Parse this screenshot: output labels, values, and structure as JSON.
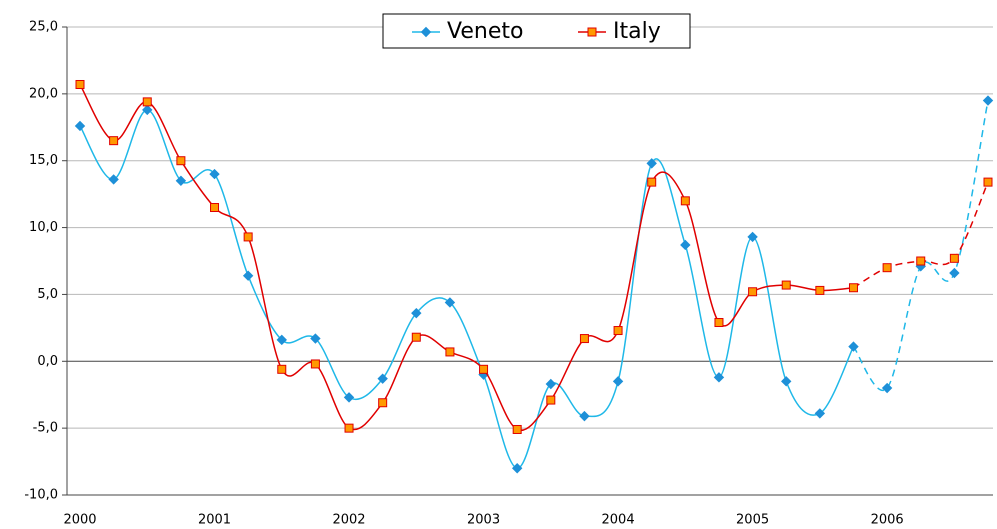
{
  "chart_data": {
    "type": "line",
    "categories": [
      "2000",
      null,
      null,
      null,
      "2001",
      null,
      null,
      null,
      "2002",
      null,
      null,
      null,
      "2003",
      null,
      null,
      null,
      "2004",
      null,
      null,
      null,
      "2005",
      null,
      null,
      null,
      "2006",
      null,
      null,
      null
    ],
    "series": [
      {
        "name": "Veneto",
        "color": "#1fb8e8",
        "marker_color": "#1e90d8",
        "marker": "diamond",
        "values": [
          17.6,
          13.6,
          18.8,
          13.5,
          14.0,
          6.4,
          1.6,
          1.7,
          -2.7,
          -1.3,
          3.6,
          4.4,
          -1.0,
          -8.0,
          -1.7,
          -4.1,
          -1.5,
          14.8,
          8.7,
          -1.2,
          9.3,
          -1.5,
          -3.9,
          1.1,
          -2.0,
          7.1,
          6.6,
          19.5
        ]
      },
      {
        "name": "Italy",
        "color": "#e00000",
        "marker_color": "#ff9900",
        "marker": "square",
        "values": [
          20.7,
          16.5,
          19.4,
          15.0,
          11.5,
          9.3,
          -0.6,
          -0.2,
          -5.0,
          -3.1,
          1.8,
          0.7,
          -0.6,
          -5.1,
          -2.9,
          1.7,
          2.3,
          13.4,
          12.0,
          2.9,
          5.2,
          5.7,
          5.3,
          5.5,
          7.0,
          7.5,
          7.7,
          13.4
        ]
      }
    ],
    "dashed_from": 23,
    "smooth": true,
    "ylim": [
      -10,
      25
    ],
    "yticks": [
      {
        "value": -10,
        "label": "-10,0"
      },
      {
        "value": -5,
        "label": "-5,0"
      },
      {
        "value": 0,
        "label": "0,0"
      },
      {
        "value": 5,
        "label": "5,0"
      },
      {
        "value": 10,
        "label": "10,0"
      },
      {
        "value": 15,
        "label": "15,0"
      },
      {
        "value": 20,
        "label": "20,0"
      },
      {
        "value": 25,
        "label": "25,0"
      }
    ],
    "grid": true,
    "legend": "top"
  }
}
